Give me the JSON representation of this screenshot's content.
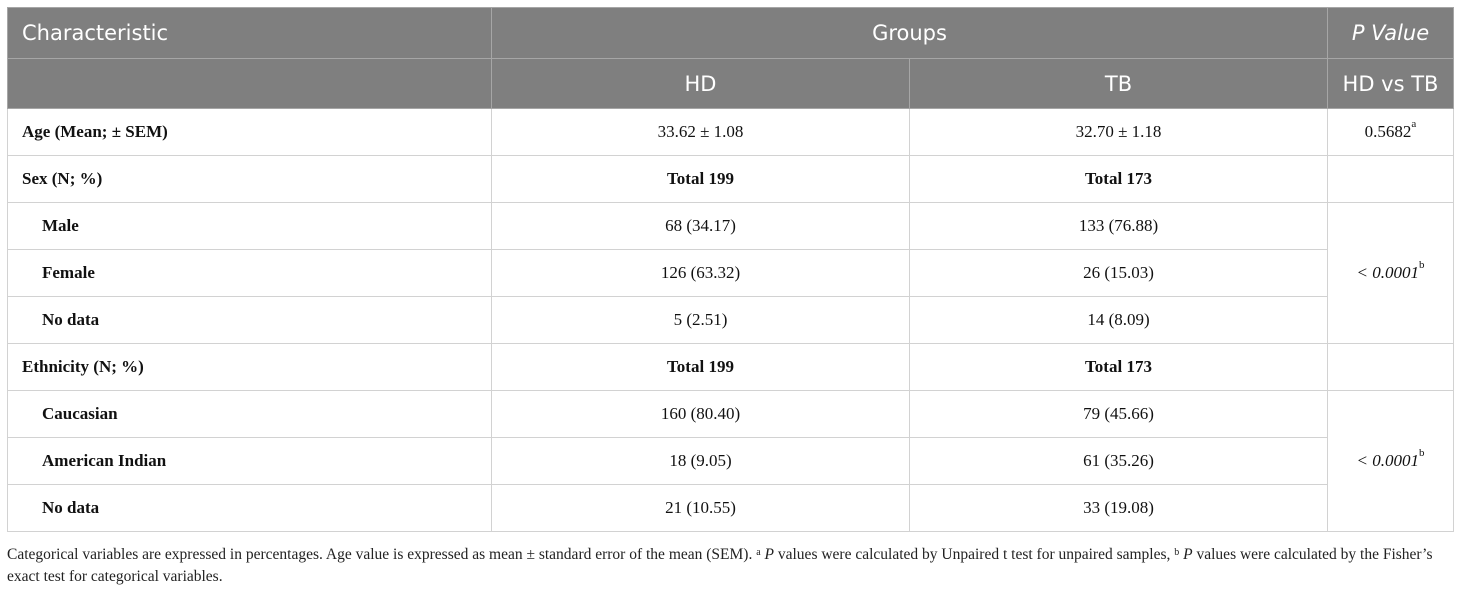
{
  "header": {
    "characteristic": "Characteristic",
    "groups": "Groups",
    "p_value": "P Value",
    "hd": "HD",
    "tb": "TB",
    "hd_vs_tb": "HD vs TB"
  },
  "rows": {
    "age": {
      "label": "Age (Mean; ± SEM)",
      "hd": "33.62 ± 1.08",
      "tb": "32.70 ± 1.18",
      "p": "0.5682",
      "p_sup": "a"
    },
    "sex": {
      "label": "Sex (N; %)",
      "hd": "Total 199",
      "tb": "Total 173"
    },
    "male": {
      "label": "Male",
      "hd": "68 (34.17)",
      "tb": "133 (76.88)"
    },
    "female": {
      "label": "Female",
      "hd": "126 (63.32)",
      "tb": "26 (15.03)"
    },
    "sex_nodata": {
      "label": "No data",
      "hd": "5 (2.51)",
      "tb": "14 (8.09)"
    },
    "sex_p": {
      "p": "< 0.0001",
      "p_sup": "b"
    },
    "ethnicity": {
      "label": "Ethnicity (N; %)",
      "hd": "Total 199",
      "tb": "Total 173"
    },
    "caucasian": {
      "label": "Caucasian",
      "hd": "160 (80.40)",
      "tb": "79 (45.66)"
    },
    "american_indian": {
      "label": "American Indian",
      "hd": "18 (9.05)",
      "tb": "61 (35.26)"
    },
    "eth_nodata": {
      "label": "No data",
      "hd": "21 (10.55)",
      "tb": "33 (19.08)"
    },
    "eth_p": {
      "p": "< 0.0001",
      "p_sup": "b"
    }
  },
  "footnote": {
    "part1": "Categorical variables are expressed in percentages. Age value is expressed as mean ± standard error of the mean (SEM). ",
    "sup_a": "a",
    "p_a": " P",
    "part2": " values were calculated by Unpaired t test for unpaired samples, ",
    "sup_b": "b",
    "p_b": " P",
    "part3": " values were calculated by the Fisher’s exact test for categorical variables."
  }
}
